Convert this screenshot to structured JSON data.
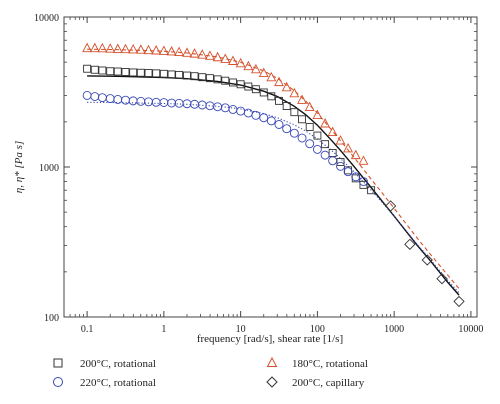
{
  "chart_data": {
    "type": "scatter",
    "x_scale": "log",
    "y_scale": "log",
    "xlabel": "frequency [rad/s], shear rate [1/s]",
    "ylabel": "η, η* [Pa s]",
    "xlim": [
      0.05,
      12000
    ],
    "ylim": [
      100,
      10000
    ],
    "x_ticks": [
      0.1,
      1,
      10,
      100,
      1000,
      10000
    ],
    "x_tick_labels": [
      "0.1",
      "1",
      "10",
      "100",
      "1000",
      "10000"
    ],
    "y_ticks": [
      100,
      1000,
      10000
    ],
    "y_tick_labels": [
      "100",
      "1000",
      "10000"
    ],
    "grid": false,
    "legend_position": "bottom",
    "series": [
      {
        "name": "200°C, rotational",
        "marker": "square",
        "color": "#333333",
        "x": [
          0.1,
          0.126,
          0.158,
          0.2,
          0.251,
          0.316,
          0.398,
          0.501,
          0.631,
          0.794,
          1,
          1.26,
          1.58,
          2,
          2.51,
          3.16,
          3.98,
          5.01,
          6.31,
          7.94,
          10,
          12.6,
          15.8,
          20,
          25.1,
          31.6,
          39.8,
          50.1,
          63.1,
          79.4,
          100,
          126,
          158,
          200,
          251,
          316,
          398,
          501
        ],
        "y": [
          4520,
          4450,
          4400,
          4350,
          4330,
          4300,
          4270,
          4250,
          4230,
          4210,
          4180,
          4140,
          4110,
          4070,
          4030,
          3970,
          3910,
          3840,
          3760,
          3660,
          3560,
          3440,
          3300,
          3140,
          2960,
          2760,
          2550,
          2320,
          2080,
          1850,
          1620,
          1420,
          1240,
          1080,
          950,
          840,
          760,
          700
        ]
      },
      {
        "name": "220°C, rotational",
        "marker": "circle",
        "color": "#3a49b5",
        "x": [
          0.1,
          0.126,
          0.158,
          0.2,
          0.251,
          0.316,
          0.398,
          0.501,
          0.631,
          0.794,
          1,
          1.26,
          1.58,
          2,
          2.51,
          3.16,
          3.98,
          5.01,
          6.31,
          7.94,
          10,
          12.6,
          15.8,
          20,
          25.1,
          31.6,
          39.8,
          50.1,
          63.1,
          79.4,
          100,
          126,
          158,
          200,
          251,
          316,
          398
        ],
        "y": [
          3000,
          2950,
          2900,
          2860,
          2820,
          2790,
          2760,
          2740,
          2720,
          2700,
          2690,
          2670,
          2660,
          2640,
          2620,
          2590,
          2560,
          2520,
          2480,
          2420,
          2360,
          2290,
          2210,
          2130,
          2030,
          1920,
          1800,
          1680,
          1560,
          1430,
          1310,
          1200,
          1100,
          1010,
          930,
          860,
          800
        ]
      },
      {
        "name": "180°C, rotational",
        "marker": "triangle",
        "color": "#d4502a",
        "x": [
          0.1,
          0.126,
          0.158,
          0.2,
          0.251,
          0.316,
          0.398,
          0.501,
          0.631,
          0.794,
          1,
          1.26,
          1.58,
          2,
          2.51,
          3.16,
          3.98,
          5.01,
          6.31,
          7.94,
          10,
          12.6,
          15.8,
          20,
          25.1,
          31.6,
          39.8,
          50.1,
          63.1,
          79.4,
          100,
          126,
          158,
          200,
          251,
          316,
          398
        ],
        "y": [
          6200,
          6200,
          6180,
          6150,
          6120,
          6100,
          6080,
          6050,
          6010,
          5980,
          5940,
          5890,
          5840,
          5770,
          5700,
          5610,
          5510,
          5390,
          5250,
          5090,
          4910,
          4700,
          4480,
          4230,
          3960,
          3680,
          3400,
          3100,
          2800,
          2510,
          2220,
          1950,
          1710,
          1500,
          1330,
          1200,
          1100
        ]
      },
      {
        "name": "200°C, capillary",
        "marker": "diamond",
        "color": "#333333",
        "x": [
          900,
          1600,
          2700,
          4200,
          7000
        ],
        "y": [
          550,
          305,
          240,
          180,
          127
        ]
      }
    ],
    "fit_lines": [
      {
        "style": "solid",
        "color": "#111111",
        "x": [
          0.1,
          0.2,
          0.5,
          1,
          2,
          5,
          10,
          20,
          30,
          50,
          70,
          100,
          150,
          200,
          300,
          500,
          700,
          1000,
          2000,
          3000,
          5000,
          7000
        ],
        "y": [
          4050,
          4030,
          3990,
          3950,
          3880,
          3720,
          3520,
          3200,
          2950,
          2540,
          2240,
          1900,
          1520,
          1290,
          1010,
          730,
          590,
          470,
          300,
          235,
          170,
          140
        ]
      },
      {
        "style": "dotted",
        "color": "#3a49b5",
        "x": [
          0.1,
          0.2,
          0.5,
          1,
          2,
          5,
          10,
          20,
          30,
          50,
          70,
          100,
          150,
          200,
          300,
          500,
          700,
          1000,
          2000,
          3000,
          5000,
          7000
        ],
        "y": [
          2700,
          2690,
          2670,
          2650,
          2620,
          2540,
          2440,
          2270,
          2130,
          1910,
          1740,
          1540,
          1300,
          1140,
          930,
          700,
          580,
          470,
          305,
          240,
          175,
          145
        ]
      },
      {
        "style": "dashed",
        "color": "#d4502a",
        "x": [
          0.1,
          0.2,
          0.5,
          1,
          2,
          5,
          10,
          20,
          30,
          50,
          70,
          100,
          150,
          200,
          300,
          500,
          700,
          1000,
          2000,
          3000,
          5000,
          7000
        ],
        "y": [
          6100,
          6070,
          6000,
          5910,
          5760,
          5420,
          5000,
          4370,
          3900,
          3230,
          2760,
          2290,
          1790,
          1500,
          1160,
          830,
          670,
          530,
          335,
          260,
          190,
          155
        ]
      }
    ]
  }
}
